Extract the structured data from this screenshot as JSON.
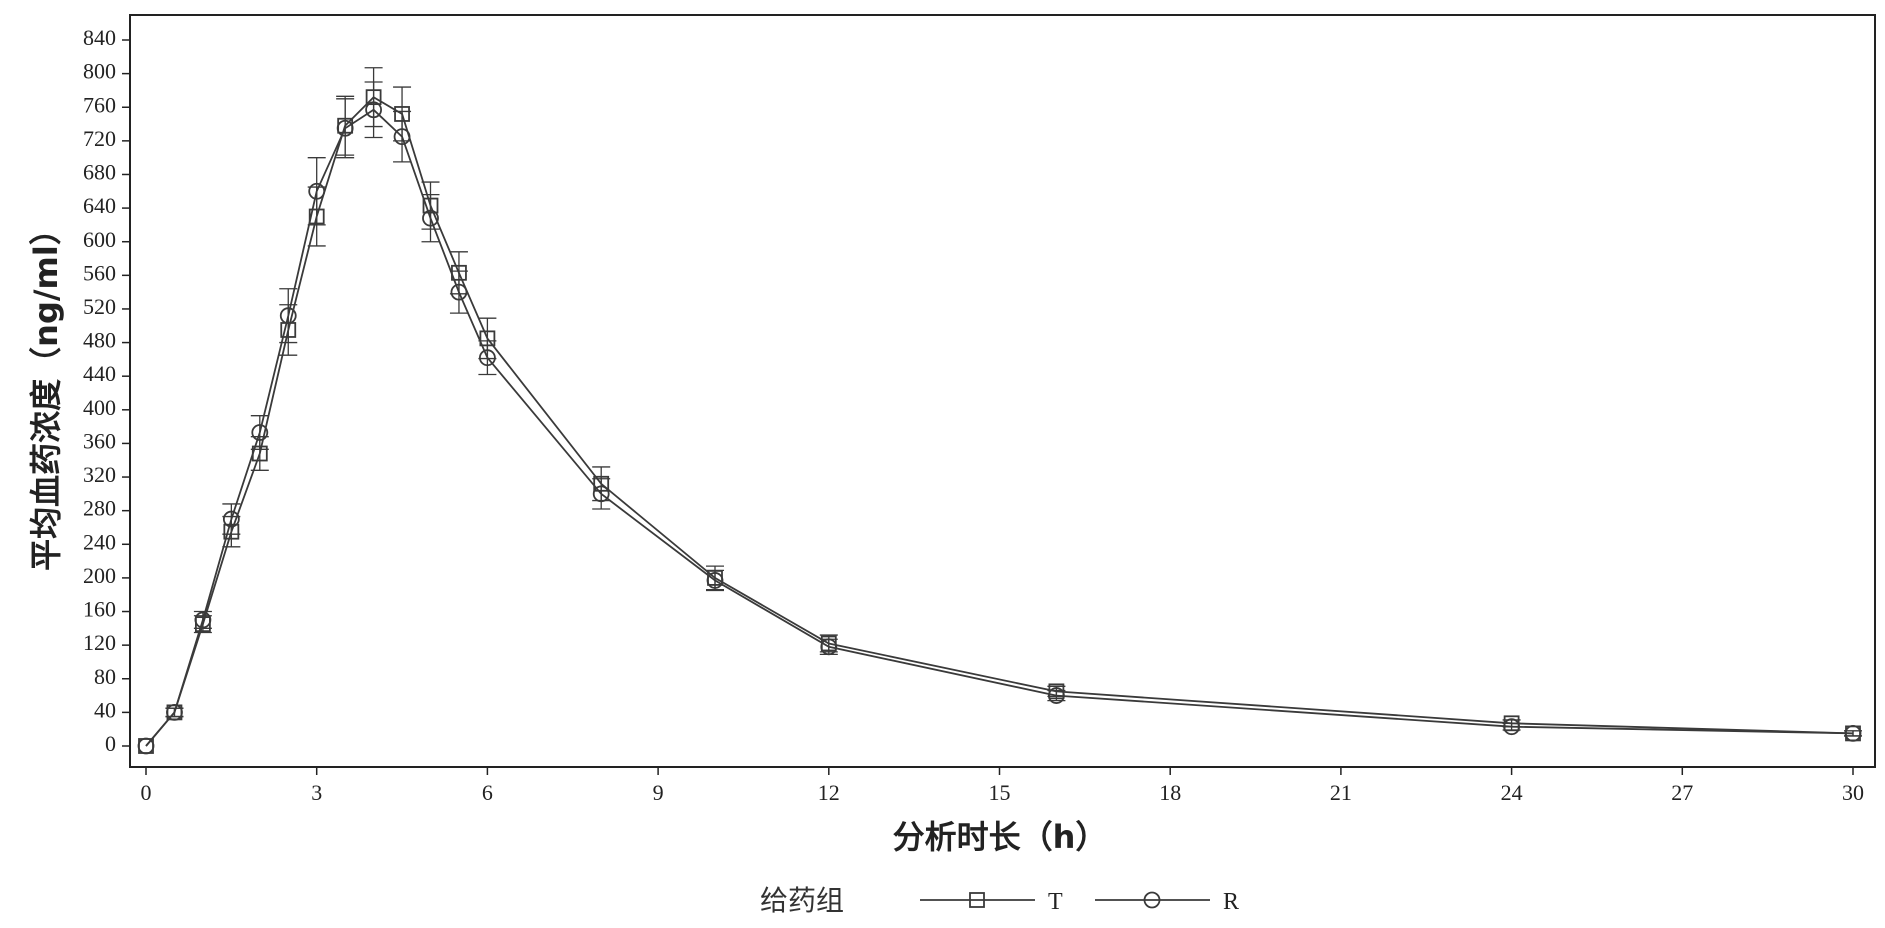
{
  "chart_data": {
    "type": "line",
    "title": "",
    "xlabel": "分析时长（h）",
    "ylabel": "平均血药浓度（ng/ml）",
    "xlim": [
      0,
      30
    ],
    "ylim": [
      0,
      840
    ],
    "x_ticks": [
      0,
      3,
      6,
      9,
      12,
      15,
      18,
      21,
      24,
      27,
      30
    ],
    "y_ticks": [
      0,
      40,
      80,
      120,
      160,
      200,
      240,
      280,
      320,
      360,
      400,
      440,
      480,
      520,
      560,
      600,
      640,
      680,
      720,
      760,
      800,
      840
    ],
    "grid": false,
    "legend": {
      "title": "给药组",
      "placement": "bottom-center"
    },
    "x": [
      0,
      0.5,
      1,
      1.5,
      2,
      2.5,
      3,
      3.5,
      4,
      4.5,
      5,
      5.5,
      6,
      8,
      10,
      12,
      16,
      24,
      30
    ],
    "series": [
      {
        "name": "T",
        "marker": "square",
        "values": [
          0,
          40,
          145,
          255,
          348,
          495,
          630,
          738,
          772,
          752,
          643,
          563,
          485,
          312,
          200,
          122,
          65,
          27,
          15
        ],
        "error": [
          0,
          5,
          10,
          18,
          20,
          30,
          35,
          35,
          35,
          32,
          28,
          25,
          24,
          20,
          14,
          10,
          6,
          4,
          3
        ]
      },
      {
        "name": "R",
        "marker": "circle",
        "values": [
          0,
          40,
          150,
          270,
          373,
          512,
          660,
          735,
          757,
          725,
          628,
          540,
          462,
          300,
          197,
          118,
          60,
          23,
          15
        ],
        "error": [
          0,
          5,
          10,
          18,
          20,
          32,
          40,
          35,
          33,
          30,
          28,
          25,
          20,
          18,
          12,
          9,
          6,
          4,
          3
        ]
      }
    ],
    "colors": {
      "line": "#3a3a3a",
      "axis": "#222222"
    }
  }
}
